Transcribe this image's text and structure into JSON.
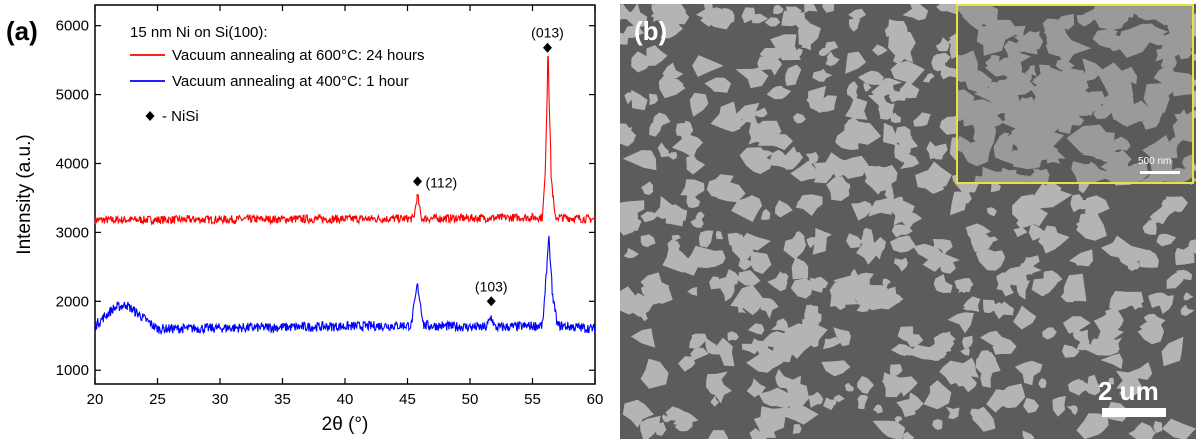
{
  "panel_a": {
    "label": "(a)",
    "chart_data": {
      "type": "line",
      "xlabel": "2θ (°)",
      "ylabel": "Intensity (a.u.)",
      "xlim": [
        20,
        60
      ],
      "ylim": [
        800,
        6300
      ],
      "xticks": [
        20,
        25,
        30,
        35,
        40,
        45,
        50,
        55,
        60
      ],
      "yticks": [
        1000,
        2000,
        3000,
        4000,
        5000,
        6000
      ],
      "legend_title": "15 nm Ni on Si(100):",
      "legend_position": "top-left",
      "marker_legend": "- NiSi",
      "series": [
        {
          "name": "Vacuum annealing at 600°C: 24 hours",
          "color": "#ff0000",
          "baseline": 3200,
          "noise": 60,
          "points": [
            [
              20,
              3180
            ],
            [
              45.5,
              3200
            ],
            [
              45.8,
              3550
            ],
            [
              46.1,
              3200
            ],
            [
              55.8,
              3220
            ],
            [
              56.0,
              3800
            ],
            [
              56.25,
              5550
            ],
            [
              56.5,
              3800
            ],
            [
              56.8,
              3220
            ],
            [
              60,
              3190
            ]
          ]
        },
        {
          "name": "Vacuum annealing at 400°C:  1 hour",
          "color": "#0000ff",
          "baseline": 1620,
          "noise": 70,
          "points": [
            [
              20,
              1650
            ],
            [
              21.5,
              1900
            ],
            [
              22.5,
              1950
            ],
            [
              25,
              1600
            ],
            [
              45.3,
              1650
            ],
            [
              45.8,
              2250
            ],
            [
              46.3,
              1650
            ],
            [
              51.3,
              1620
            ],
            [
              51.7,
              1780
            ],
            [
              52.0,
              1620
            ],
            [
              55.8,
              1650
            ],
            [
              56.0,
              2100
            ],
            [
              56.3,
              2950
            ],
            [
              56.6,
              2100
            ],
            [
              57.0,
              1650
            ],
            [
              60,
              1600
            ]
          ]
        }
      ],
      "annotations": [
        {
          "label": "(013)",
          "x": 56.2,
          "y": 5680,
          "marker": true
        },
        {
          "label": "(112)",
          "x": 45.8,
          "y": 3740,
          "marker": true
        },
        {
          "label": "(103)",
          "x": 51.7,
          "y": 2000,
          "marker": true
        }
      ]
    }
  },
  "panel_b": {
    "label": "(b)",
    "scale_main": "2 um",
    "scale_inset": "500 nm",
    "inset_border_color": "#e8e23a"
  }
}
